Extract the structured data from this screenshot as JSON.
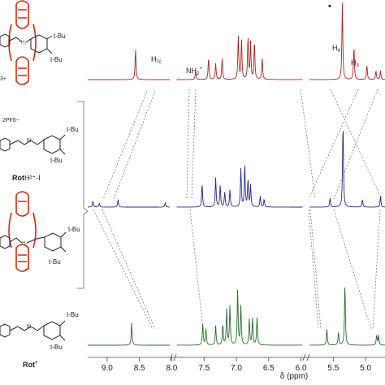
{
  "chart_data": {
    "type": "line",
    "title": "",
    "xlabel": "δ (ppm)",
    "ylabel": "",
    "xlim": [
      9.3,
      4.7
    ],
    "x_reversed": true,
    "x_ticks": [
      "9.0",
      "8.5",
      "8.0",
      "7.5",
      "7.0",
      "6.5",
      "6.0",
      "5.5",
      "5.0"
    ],
    "axis_breaks_ppm": [
      [
        8.03,
        7.93
      ],
      [
        5.97,
        5.87
      ]
    ],
    "series": [
      {
        "color": "#b22222",
        "peaks": [
          [
            8.56,
            0.42
          ],
          [
            7.63,
            0.12
          ],
          [
            7.43,
            0.3
          ],
          [
            7.32,
            0.22
          ],
          [
            7.22,
            0.28
          ],
          [
            6.97,
            0.6
          ],
          [
            6.92,
            0.55
          ],
          [
            6.82,
            0.58
          ],
          [
            6.78,
            0.5
          ],
          [
            6.72,
            0.52
          ],
          [
            6.6,
            0.3
          ],
          [
            5.36,
            1.05
          ],
          [
            5.18,
            0.45
          ],
          [
            4.98,
            0.2
          ],
          [
            4.84,
            0.12
          ],
          [
            4.77,
            0.12
          ]
        ]
      },
      {
        "color": "#27278a",
        "peaks": [
          [
            9.22,
            0.08
          ],
          [
            9.12,
            0.05
          ],
          [
            8.83,
            0.1
          ],
          [
            8.1,
            0.06
          ],
          [
            7.53,
            0.3
          ],
          [
            7.32,
            0.38
          ],
          [
            7.25,
            0.28
          ],
          [
            7.18,
            0.2
          ],
          [
            7.1,
            0.22
          ],
          [
            6.93,
            0.5
          ],
          [
            6.87,
            0.55
          ],
          [
            6.82,
            0.35
          ],
          [
            6.78,
            0.28
          ],
          [
            6.63,
            0.14
          ],
          [
            6.57,
            0.1
          ],
          [
            5.55,
            0.12
          ],
          [
            5.35,
            1.1
          ],
          [
            5.05,
            0.1
          ],
          [
            4.77,
            0.14
          ]
        ]
      },
      {
        "color": "#2d6a2d",
        "peaks": [
          [
            8.62,
            0.35
          ],
          [
            7.52,
            0.33
          ],
          [
            7.47,
            0.25
          ],
          [
            7.32,
            0.3
          ],
          [
            7.21,
            0.32
          ],
          [
            7.15,
            0.55
          ],
          [
            7.1,
            0.6
          ],
          [
            6.98,
            0.85
          ],
          [
            6.93,
            0.6
          ],
          [
            6.8,
            0.4
          ],
          [
            6.75,
            0.42
          ],
          [
            6.68,
            0.42
          ],
          [
            5.6,
            0.25
          ],
          [
            5.42,
            0.2
          ],
          [
            5.32,
            0.95
          ],
          [
            4.83,
            0.15
          ],
          [
            4.8,
            0.15
          ]
        ]
      }
    ],
    "annotations": [
      "H7c",
      "NH2+",
      "H4",
      "H3",
      "•"
    ],
    "compound_labels": [
      "3+",
      "2PF6−",
      "t-Bu",
      "RotH2+-I",
      "Rot+"
    ]
  }
}
